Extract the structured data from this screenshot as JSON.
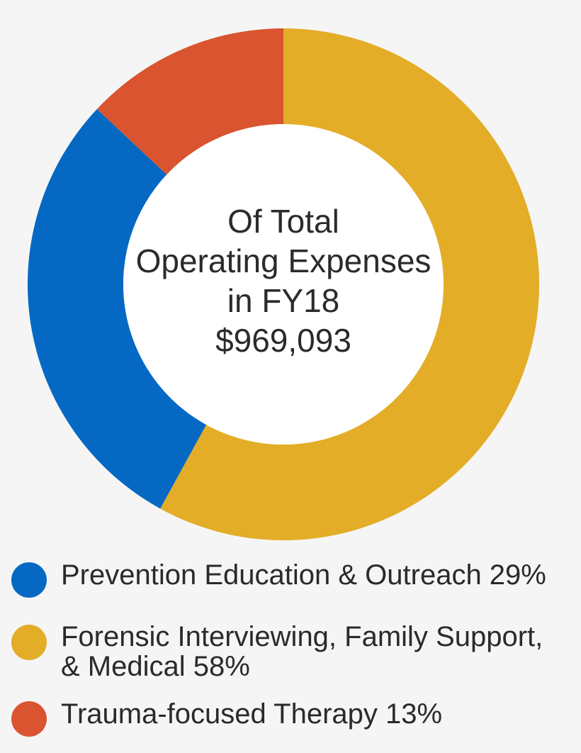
{
  "chart_data": {
    "type": "pie",
    "title": "",
    "center_text": [
      "Of Total",
      "Operating Expenses",
      "in FY18",
      "$969,093"
    ],
    "slices": [
      {
        "label": "Forensic Interviewing, Family Support, & Medical",
        "value": 58,
        "color": "#e3ad27"
      },
      {
        "label": "Prevention Education & Outreach",
        "value": 29,
        "color": "#0569c4"
      },
      {
        "label": "Trauma-focused Therapy",
        "value": 13,
        "color": "#d9542f"
      }
    ],
    "legend_placement": "bottom"
  },
  "legend": {
    "items": [
      {
        "text": "Prevention Education & Outreach 29%",
        "color": "#0569c4"
      },
      {
        "text": "Forensic Interviewing, Family Support,\n& Medical 58%",
        "color": "#e3ad27"
      },
      {
        "text": "Trauma-focused Therapy 13%",
        "color": "#d9542f"
      }
    ]
  }
}
